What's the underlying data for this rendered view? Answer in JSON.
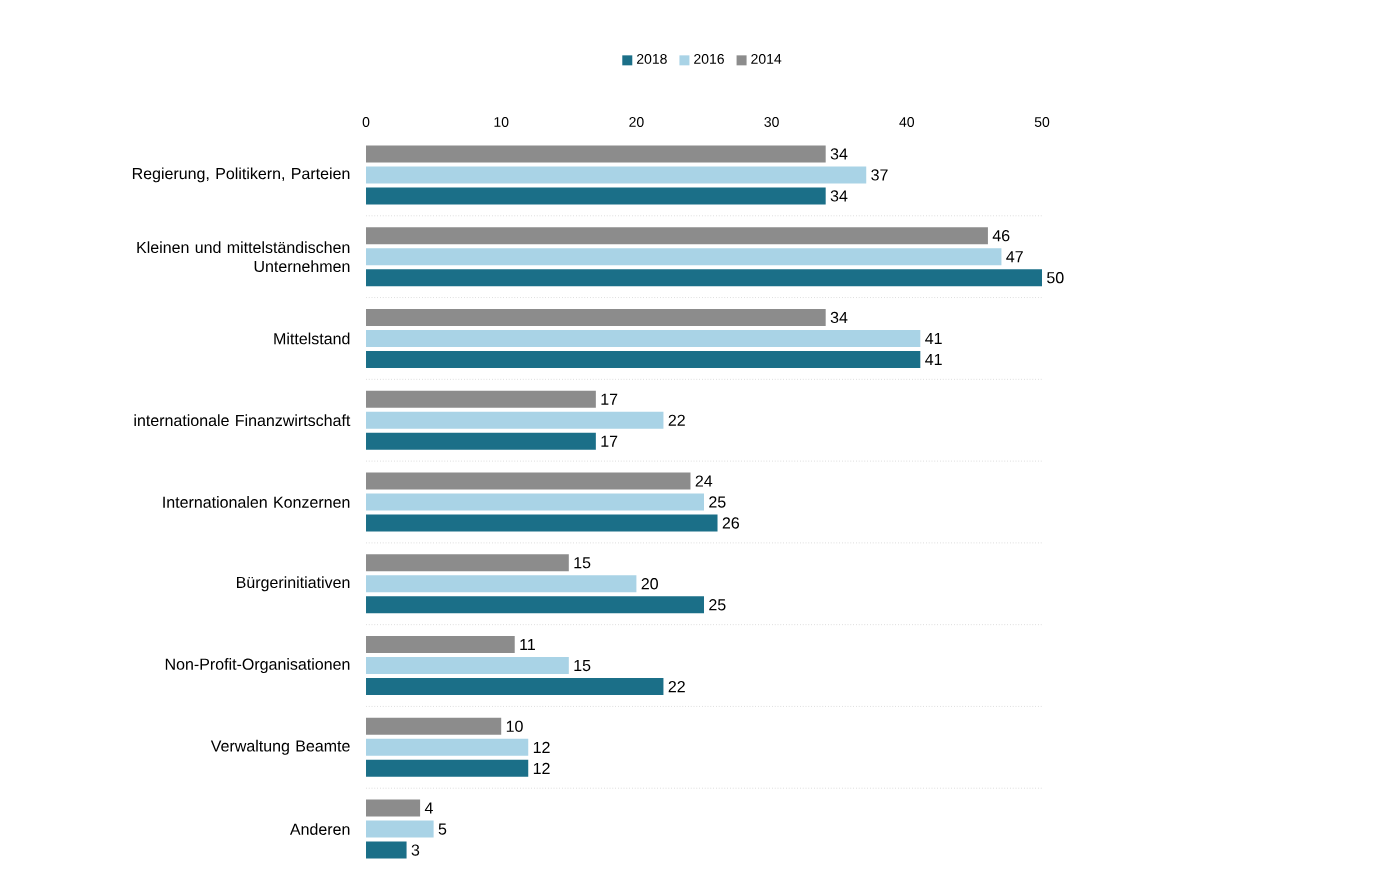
{
  "chart_data": {
    "type": "bar",
    "orientation": "horizontal",
    "categories": [
      "Regierung, Politikern, Parteien",
      "Kleinen und mittelständischen Unternehmen",
      "Mittelstand",
      "internationale Finanzwirtschaft",
      "Internationalen Konzernen",
      "Bürgerinitiativen",
      "Non-Profit-Organisationen",
      "Verwaltung Beamte",
      "Anderen"
    ],
    "series": [
      {
        "name": "2018",
        "color": "#1b6f88",
        "values": [
          34,
          50,
          41,
          17,
          26,
          25,
          22,
          12,
          3
        ]
      },
      {
        "name": "2016",
        "color": "#a9d3e6",
        "values": [
          37,
          47,
          41,
          22,
          25,
          20,
          15,
          12,
          5
        ]
      },
      {
        "name": "2014",
        "color": "#8c8c8c",
        "values": [
          34,
          46,
          34,
          17,
          24,
          15,
          11,
          10,
          4
        ]
      }
    ],
    "xlim": [
      0,
      50
    ],
    "xticks": [
      0,
      10,
      20,
      30,
      40,
      50
    ],
    "data_labels": true,
    "legend": "top"
  }
}
